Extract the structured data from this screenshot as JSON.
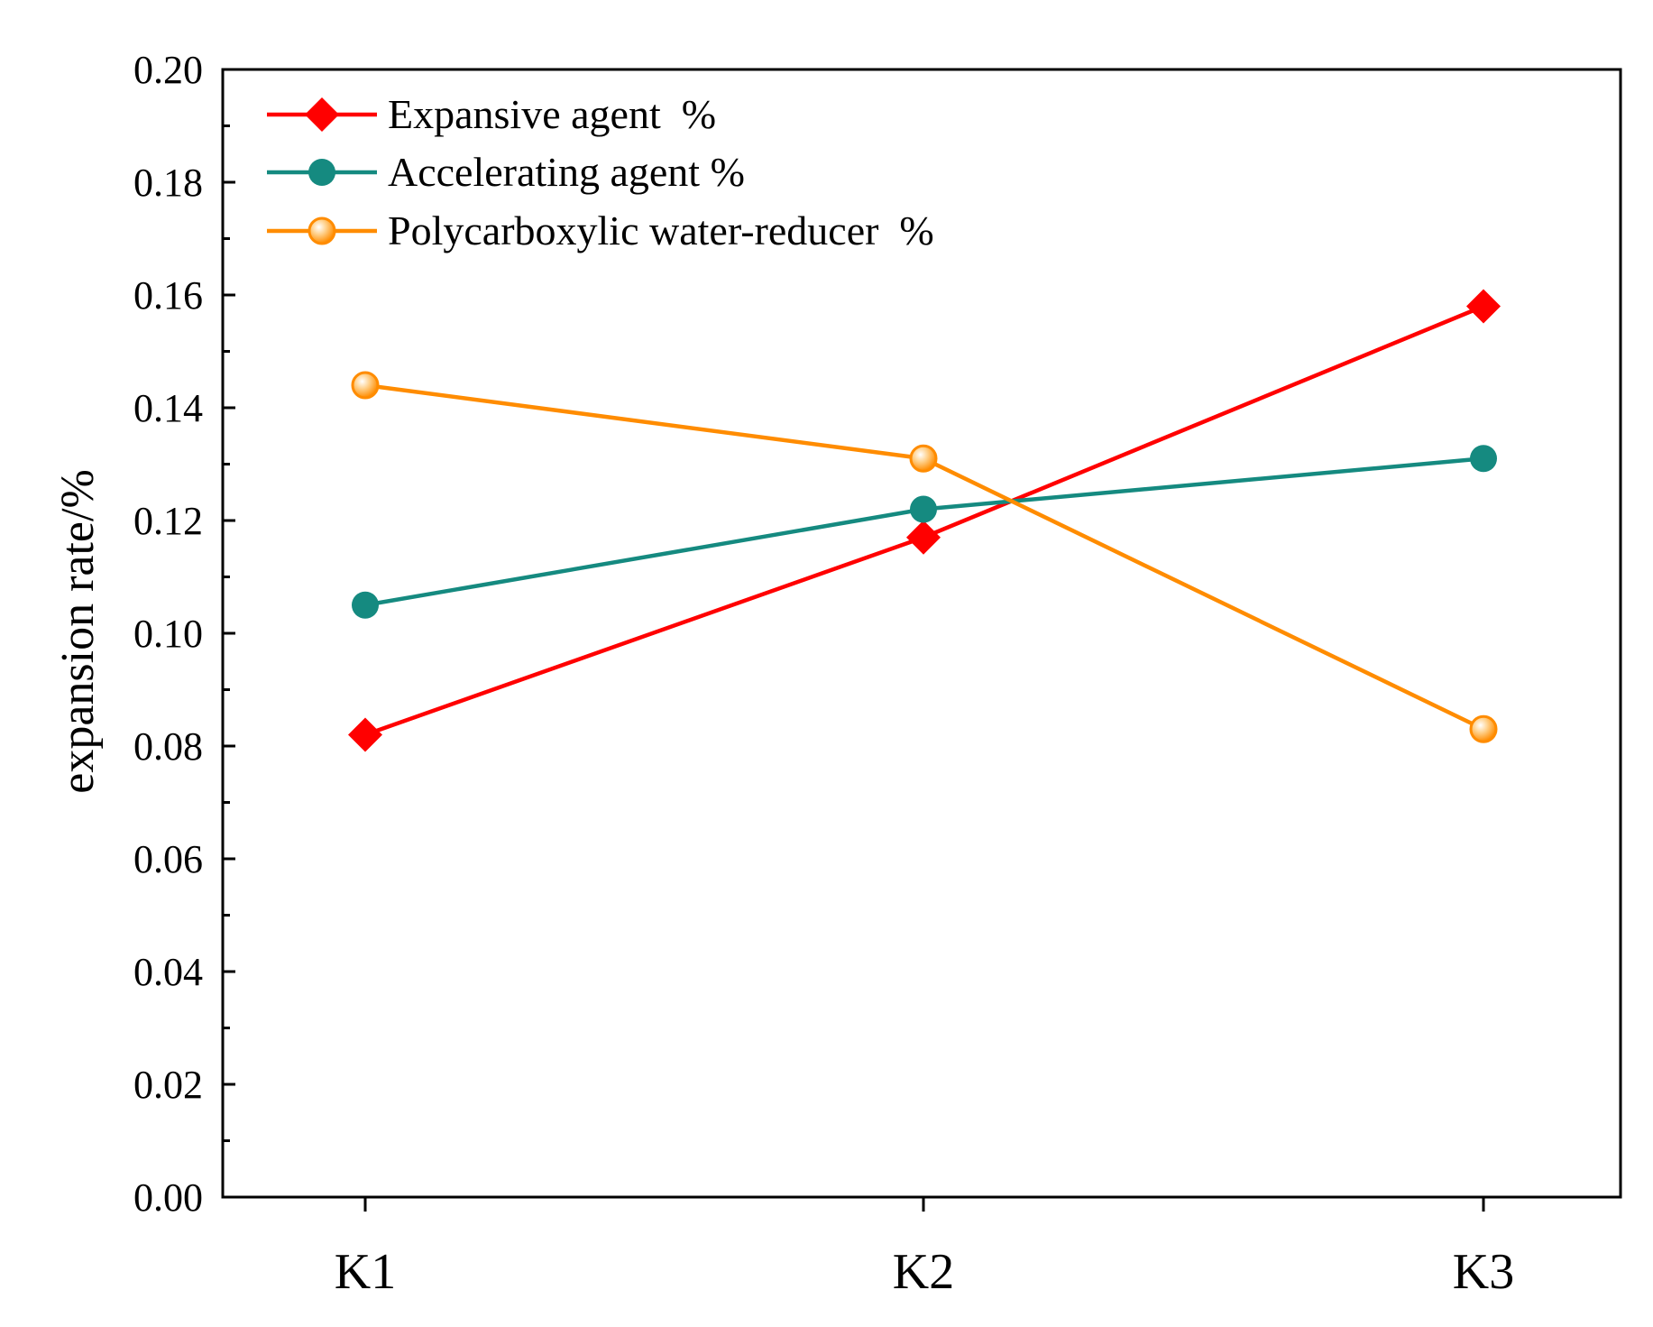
{
  "chart_data": {
    "type": "line",
    "title": "",
    "xlabel": "",
    "ylabel": "expansion rate/%",
    "categories": [
      "K1",
      "K2",
      "K3"
    ],
    "ylim": [
      0,
      0.2
    ],
    "yticks": [
      "0.00",
      "0.02",
      "0.04",
      "0.06",
      "0.08",
      "0.10",
      "0.12",
      "0.14",
      "0.16",
      "0.18",
      "0.20"
    ],
    "grid": false,
    "legend": "top-left",
    "series": [
      {
        "name": "Expansive agent  %",
        "marker": "diamond",
        "color": "#ff0000",
        "values": [
          0.082,
          0.117,
          0.158
        ]
      },
      {
        "name": "Accelerating agent %",
        "marker": "circle",
        "color": "#158a80",
        "values": [
          0.105,
          0.122,
          0.131
        ]
      },
      {
        "name": "Polycarboxylic water-reducer  %",
        "marker": "circle-hollow",
        "color": "#ff8c00",
        "values": [
          0.144,
          0.131,
          0.083
        ]
      }
    ]
  }
}
